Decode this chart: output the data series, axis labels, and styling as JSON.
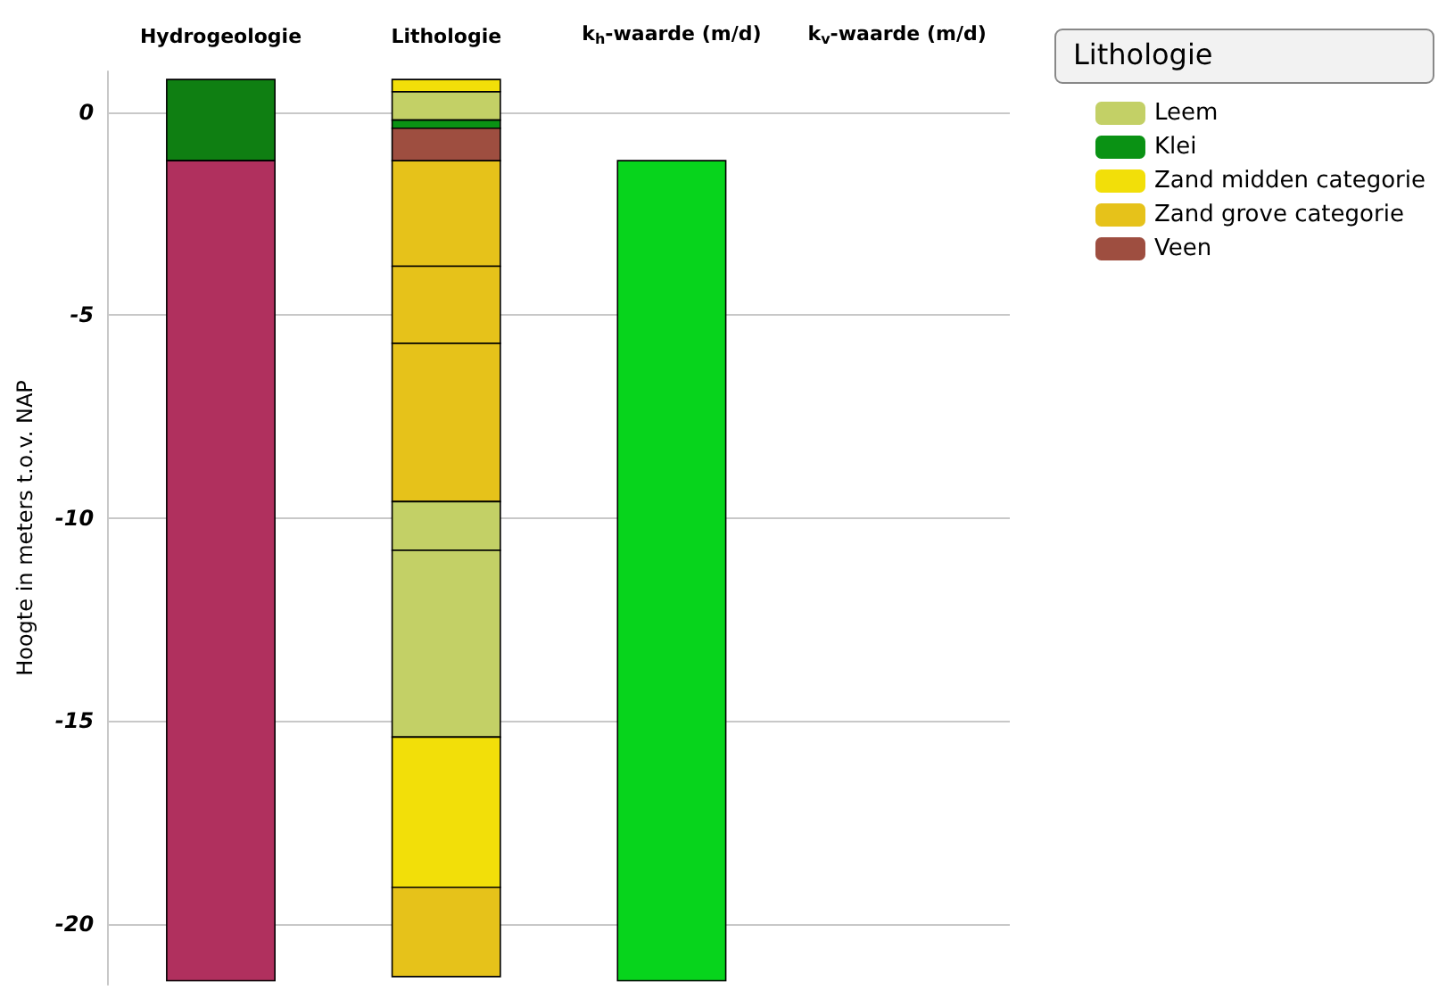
{
  "chart_data": {
    "type": "bar",
    "categories": [
      "Hydrogeologie",
      "Lithologie",
      "k$_{h}$-waarde (m/d)",
      "k$_{v}$-waarde (m/d)"
    ],
    "ylabel": "Hoogte in meters t.o.v. NAP",
    "legend_title": "Lithologie",
    "legend": "top right",
    "grid": "y",
    "ylim": [
      -21.5,
      1
    ],
    "yticks": [
      -20,
      -15,
      -10,
      -5,
      0
    ],
    "series": [
      {
        "color": "#0f7f12",
        "values": [
          2.0,
          null,
          null,
          null
        ],
        "base": [
          -1.2,
          null,
          null,
          null
        ]
      },
      {
        "color": "#b0305e",
        "values": [
          20.2,
          null,
          null,
          null
        ],
        "base": [
          -21.4,
          null,
          null,
          null
        ]
      },
      {
        "name": "Leem",
        "color": "#c3d066",
        "values": [
          null,
          0.7,
          null,
          null
        ],
        "base": [
          null,
          -0.2,
          null,
          null
        ]
      },
      {
        "name": "Klei",
        "color": "#0a9214",
        "values": [
          null,
          0.2,
          null,
          null
        ],
        "base": [
          null,
          -0.4,
          null,
          null
        ]
      },
      {
        "name": "Zand midden categorie",
        "color": "#f2df09",
        "values": [
          null,
          0.3,
          null,
          null
        ],
        "base": [
          null,
          0.5,
          null,
          null
        ]
      },
      {
        "name": "Zand grove categorie",
        "color": "#e6c21a",
        "values": [
          null,
          2.6,
          null,
          null
        ],
        "base": [
          null,
          -3.8,
          null,
          null
        ]
      },
      {
        "name": "Veen",
        "color": "#9e4e40",
        "values": [
          null,
          0.8,
          null,
          null
        ],
        "base": [
          null,
          -1.2,
          null,
          null
        ]
      },
      {
        "color": "#e6c21a",
        "values": [
          null,
          1.9,
          null,
          null
        ],
        "base": [
          null,
          -5.7,
          null,
          null
        ]
      },
      {
        "color": "#e6c21a",
        "values": [
          null,
          3.9,
          null,
          null
        ],
        "base": [
          null,
          -9.6,
          null,
          null
        ]
      },
      {
        "color": "#c3d066",
        "values": [
          null,
          1.2,
          null,
          null
        ],
        "base": [
          null,
          -10.8,
          null,
          null
        ]
      },
      {
        "color": "#c3d066",
        "values": [
          null,
          4.6,
          null,
          null
        ],
        "base": [
          null,
          -15.4,
          null,
          null
        ]
      },
      {
        "color": "#f2df09",
        "values": [
          null,
          3.7,
          null,
          null
        ],
        "base": [
          null,
          -19.1,
          null,
          null
        ]
      },
      {
        "color": "#e6c21a",
        "values": [
          null,
          2.2,
          null,
          null
        ],
        "base": [
          null,
          -21.3,
          null,
          null
        ]
      },
      {
        "color": "#07d41c",
        "values": [
          null,
          null,
          20.2,
          null
        ],
        "base": [
          null,
          null,
          -21.4,
          null
        ]
      }
    ]
  }
}
